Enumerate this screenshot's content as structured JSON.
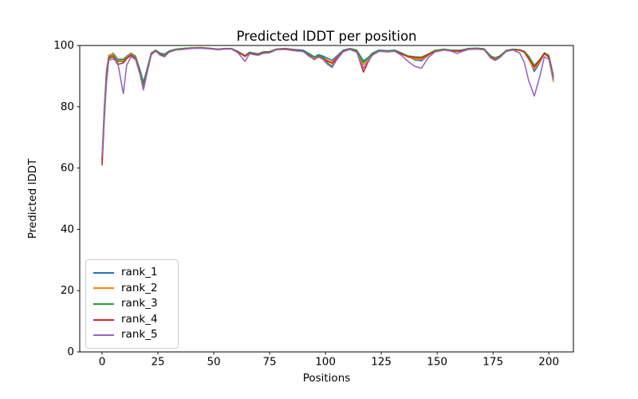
{
  "chart_data": {
    "type": "line",
    "title": "Predicted lDDT per position",
    "xlabel": "Positions",
    "ylabel": "Predicted lDDT",
    "xlim": [
      -10,
      211
    ],
    "ylim": [
      0,
      100
    ],
    "x_ticks": [
      0,
      25,
      50,
      75,
      100,
      125,
      150,
      175,
      200
    ],
    "y_ticks": [
      0,
      20,
      40,
      60,
      80,
      100
    ],
    "grid": false,
    "legend_position": "lower left",
    "background": "#ffffff",
    "spine_color": "#000000",
    "x": [
      0,
      1,
      2,
      3,
      5,
      7,
      9.5,
      11,
      13,
      15,
      17,
      18.5,
      20,
      22,
      24,
      26,
      28,
      30,
      33,
      36,
      40,
      44,
      48,
      52,
      55,
      58,
      61,
      64,
      66,
      68,
      70,
      72,
      75,
      78,
      82,
      86,
      90,
      93,
      95,
      97,
      99,
      101,
      103,
      105,
      108,
      111,
      114,
      117,
      119,
      121,
      124,
      128,
      131,
      134,
      137,
      140,
      143,
      146,
      149,
      153,
      156,
      159,
      161,
      164,
      168,
      171,
      174,
      176,
      178,
      181,
      184,
      187,
      189,
      191,
      193.5,
      196,
      198,
      200,
      202
    ],
    "series": [
      {
        "name": "rank_1",
        "color": "#1f77b4",
        "values": [
          63,
          80,
          92,
          96.5,
          97.5,
          95.5,
          95.5,
          96.5,
          97.5,
          96.5,
          92,
          88,
          92,
          97.5,
          98.5,
          97.5,
          97.2,
          98.2,
          98.8,
          99.0,
          99.2,
          99.3,
          99.1,
          98.8,
          99.0,
          99.0,
          98.0,
          96.7,
          97.8,
          97.5,
          97.3,
          97.9,
          98.0,
          98.8,
          99.0,
          98.7,
          98.5,
          97.2,
          96.3,
          97.0,
          96.5,
          95.8,
          95.2,
          96.5,
          98.5,
          99.0,
          98.5,
          95.0,
          96.0,
          97.5,
          98.5,
          98.3,
          98.5,
          97.6,
          96.5,
          95.3,
          95.0,
          96.8,
          98.3,
          98.8,
          98.5,
          98.4,
          98.5,
          99.0,
          99.1,
          98.9,
          96.5,
          95.8,
          96.5,
          98.4,
          98.8,
          98.6,
          98.0,
          96.0,
          91.5,
          94.5,
          97.3,
          96.5,
          89.0
        ]
      },
      {
        "name": "rank_2",
        "color": "#ff7f0e",
        "values": [
          62,
          79,
          91,
          96.8,
          97.3,
          95.2,
          95.0,
          96.3,
          97.3,
          96.2,
          91.5,
          87,
          91.5,
          97.3,
          98.4,
          97.2,
          96.8,
          98.0,
          98.7,
          98.9,
          99.1,
          99.2,
          99.0,
          98.7,
          98.9,
          98.9,
          97.8,
          96.5,
          97.6,
          97.3,
          97.1,
          97.7,
          97.9,
          98.7,
          98.9,
          98.5,
          98.2,
          96.8,
          95.8,
          96.6,
          96.0,
          95.2,
          94.6,
          96.0,
          98.3,
          98.9,
          98.2,
          93.6,
          95.2,
          97.2,
          98.3,
          98.1,
          98.3,
          97.3,
          96.2,
          95.6,
          95.4,
          96.9,
          98.2,
          98.7,
          98.4,
          98.2,
          98.4,
          98.9,
          99.0,
          98.8,
          96.3,
          95.5,
          96.3,
          98.3,
          98.7,
          98.5,
          97.8,
          95.5,
          92.3,
          94.8,
          97.4,
          96.0,
          88.3
        ]
      },
      {
        "name": "rank_3",
        "color": "#2ca02c",
        "values": [
          62.5,
          78,
          90,
          96.2,
          96.8,
          94.8,
          94.8,
          96.0,
          97.0,
          96.0,
          91.8,
          87.3,
          91.8,
          97.4,
          98.5,
          97.3,
          97.0,
          98.1,
          98.8,
          99.0,
          99.2,
          99.3,
          99.1,
          98.8,
          99.0,
          99.0,
          97.9,
          96.6,
          97.7,
          97.4,
          97.2,
          97.8,
          98.0,
          98.8,
          99.0,
          98.6,
          98.3,
          97.0,
          96.2,
          96.8,
          96.2,
          94.2,
          93.3,
          95.5,
          98.4,
          99.0,
          98.4,
          94.4,
          95.8,
          97.4,
          98.4,
          98.2,
          98.4,
          97.5,
          96.6,
          96.3,
          96.2,
          97.2,
          98.4,
          98.8,
          98.5,
          98.4,
          98.5,
          99.0,
          99.1,
          98.9,
          96.6,
          96.0,
          96.6,
          98.4,
          98.8,
          98.6,
          98.1,
          96.5,
          93.5,
          95.5,
          97.6,
          96.8,
          90.3
        ]
      },
      {
        "name": "rank_4",
        "color": "#d62728",
        "values": [
          61,
          76,
          89,
          95.8,
          96.3,
          93.8,
          94.3,
          95.7,
          96.8,
          95.7,
          91,
          85.8,
          91,
          97.2,
          98.3,
          97.0,
          96.5,
          97.9,
          98.6,
          98.8,
          99.1,
          99.2,
          99.0,
          98.7,
          98.9,
          98.9,
          97.8,
          96.4,
          97.5,
          97.2,
          97.0,
          97.6,
          97.8,
          98.7,
          98.9,
          98.5,
          98.1,
          96.5,
          95.4,
          96.4,
          95.6,
          94.8,
          94.2,
          95.8,
          98.2,
          98.8,
          98.0,
          91.3,
          94.5,
          97.0,
          98.2,
          98.0,
          98.2,
          97.2,
          96.4,
          96.0,
          95.9,
          97.0,
          98.1,
          98.6,
          98.3,
          98.1,
          98.3,
          98.8,
          98.9,
          98.7,
          96.2,
          95.3,
          96.2,
          98.2,
          98.6,
          98.4,
          97.9,
          95.8,
          93.0,
          95.2,
          97.5,
          96.2,
          89.6
        ]
      },
      {
        "name": "rank_5",
        "color": "#9467bd",
        "values": [
          64,
          77,
          88,
          95.2,
          95.6,
          94.4,
          84.3,
          93.5,
          96.4,
          95.4,
          90.5,
          85.5,
          90.5,
          96.9,
          98.2,
          96.8,
          96.3,
          97.8,
          98.5,
          98.7,
          99.0,
          99.1,
          98.9,
          98.6,
          98.8,
          98.8,
          97.5,
          94.8,
          97.3,
          97.0,
          96.8,
          97.4,
          97.6,
          98.6,
          98.7,
          98.3,
          98.0,
          96.3,
          95.6,
          96.2,
          95.4,
          93.8,
          92.8,
          95.3,
          98.0,
          98.7,
          97.8,
          92.5,
          94.8,
          96.8,
          98.1,
          97.9,
          98.1,
          96.8,
          94.8,
          93.2,
          92.6,
          96.0,
          97.9,
          98.5,
          98.2,
          97.4,
          98.0,
          98.7,
          98.8,
          98.6,
          95.9,
          95.1,
          96.0,
          98.1,
          98.5,
          97.5,
          94.5,
          88.5,
          83.5,
          90.0,
          96.3,
          95.5,
          89.0
        ]
      }
    ]
  }
}
